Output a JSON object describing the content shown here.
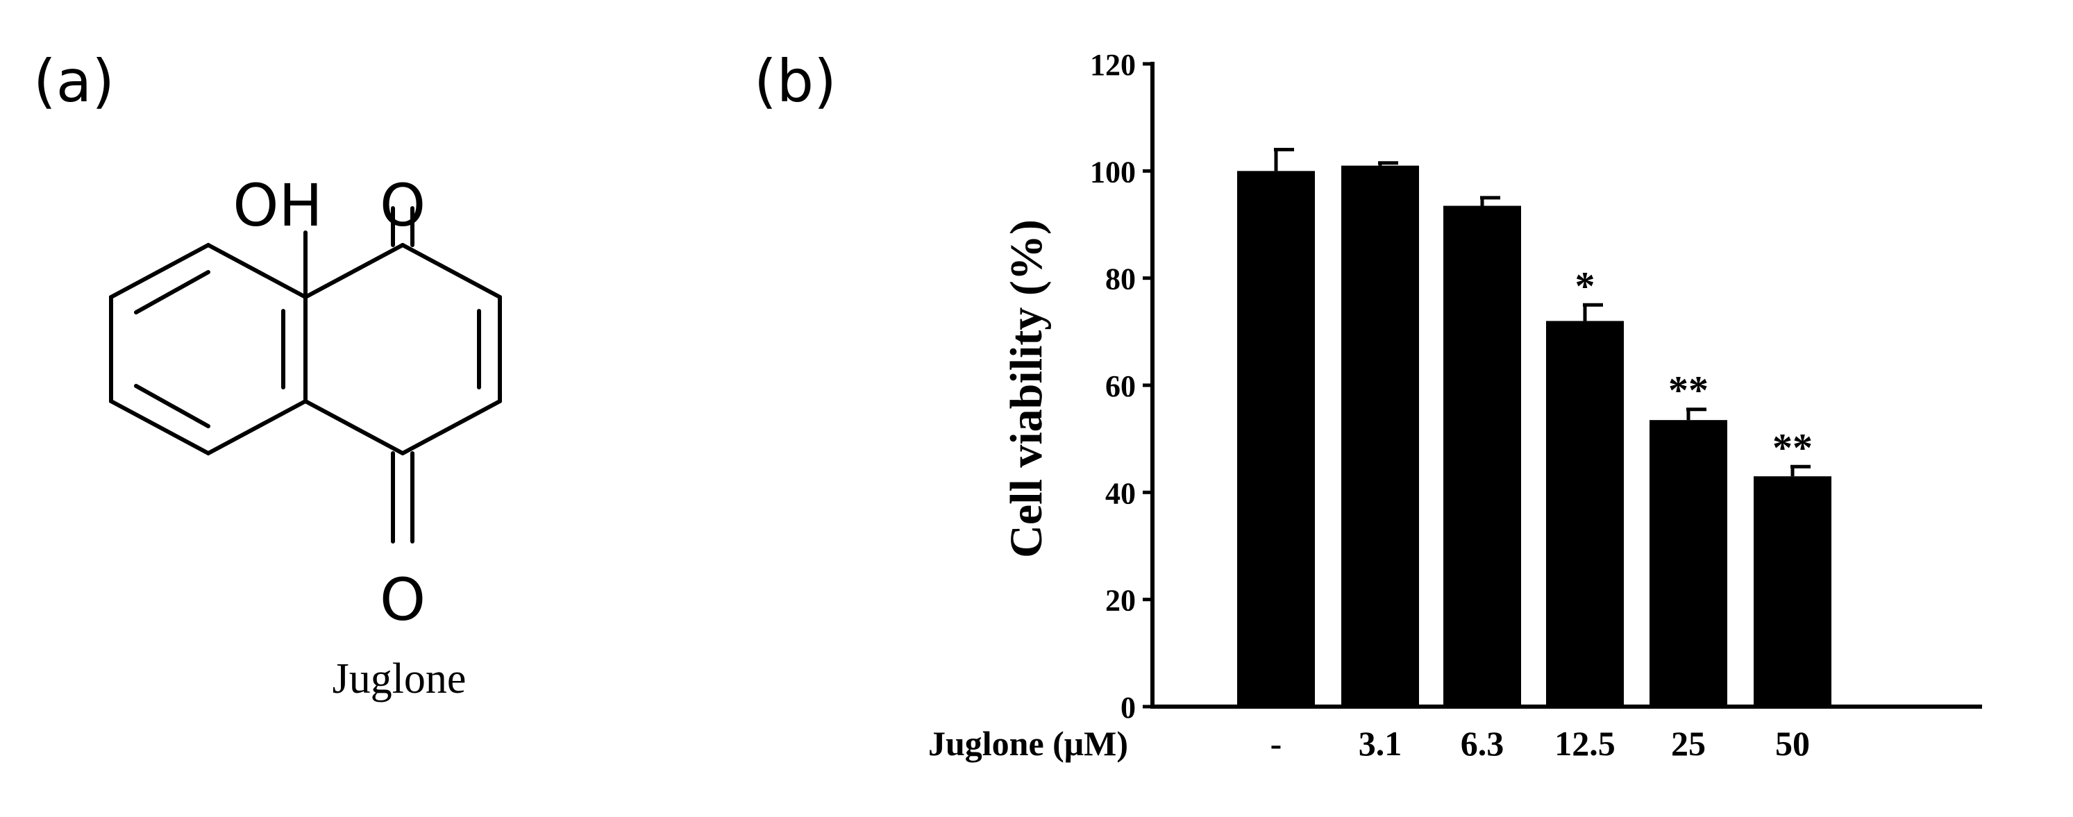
{
  "panels": {
    "a_label": "(a)",
    "b_label": "(b)"
  },
  "molecule": {
    "name": "Juglone",
    "atom_oh": "OH",
    "atom_o_top": "O",
    "atom_o_bottom": "O"
  },
  "chart_data": {
    "type": "bar",
    "ylabel": "Cell viability (%)",
    "xlabel": "Juglone (μM)",
    "categories": [
      "-",
      "3.1",
      "6.3",
      "12.5",
      "25",
      "50"
    ],
    "values": [
      100,
      101,
      93.5,
      72,
      53.5,
      43
    ],
    "errors": [
      4,
      0.5,
      1.5,
      3,
      2,
      1.8
    ],
    "significance": [
      "",
      "",
      "",
      "*",
      "**",
      "**"
    ],
    "ylim": [
      0,
      120
    ],
    "yticks": [
      0,
      20,
      40,
      60,
      80,
      100,
      120
    ],
    "bar_color": "#000000",
    "grid": false,
    "legend": false
  }
}
